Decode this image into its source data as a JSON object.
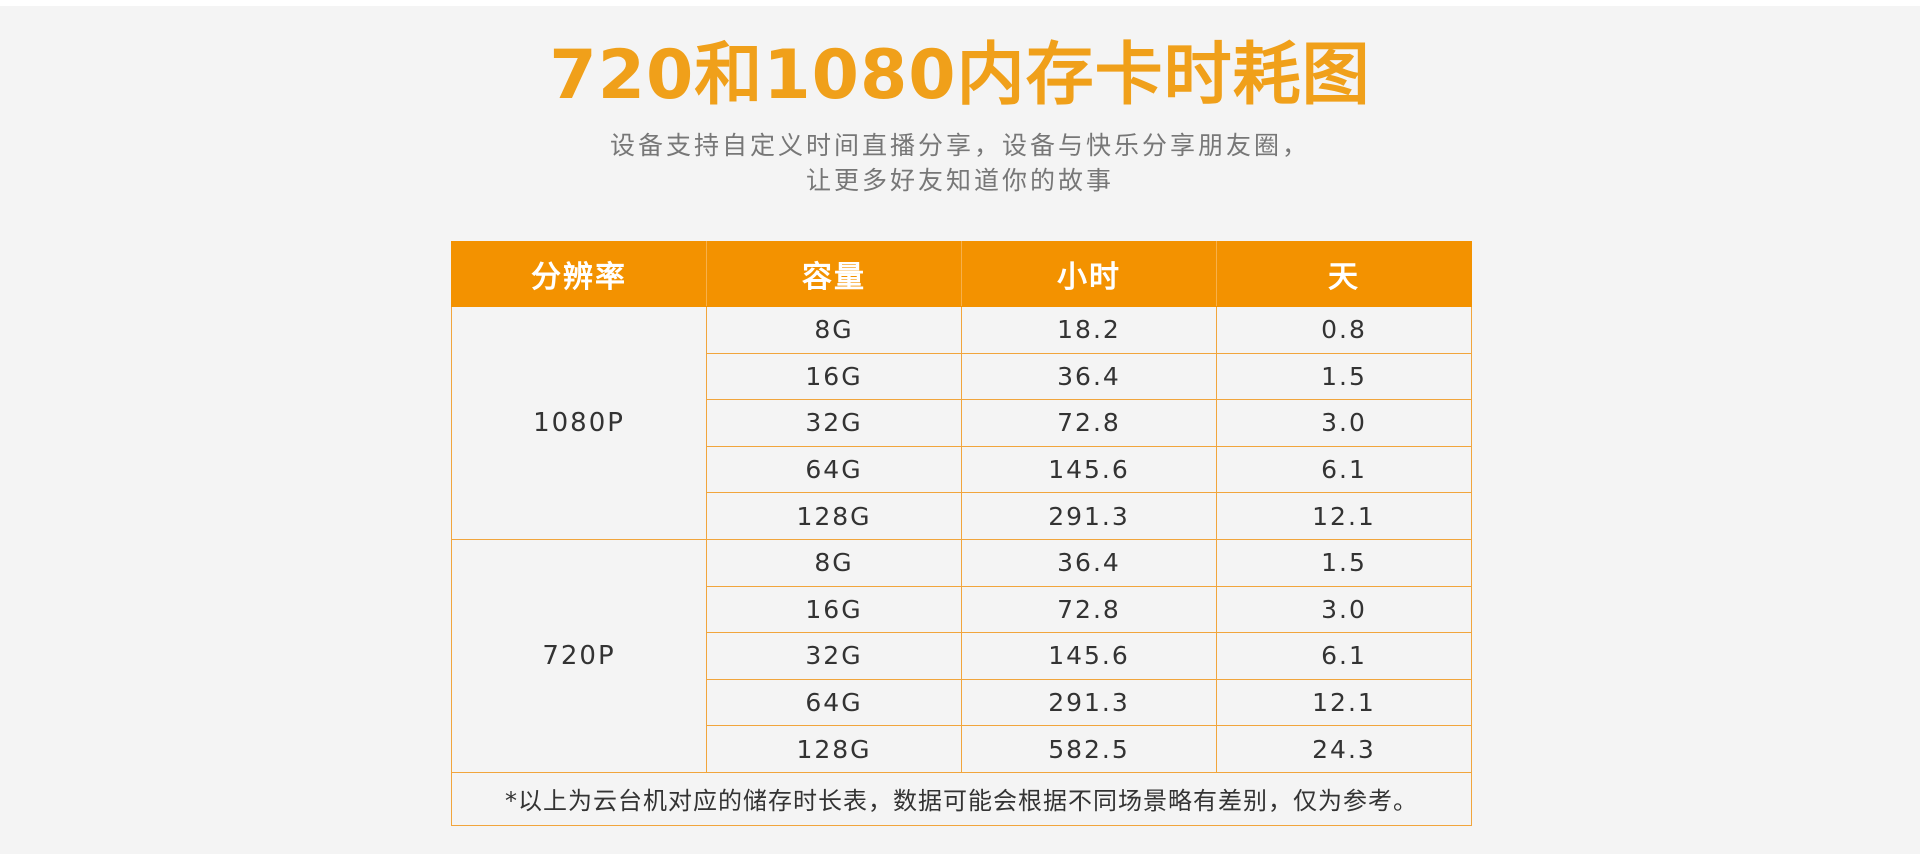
{
  "title": "720和1080内存卡时耗图",
  "subtitle": {
    "line1": "设备支持自定义时间直播分享，设备与快乐分享朋友圈，",
    "line2": "让更多好友知道你的故事"
  },
  "table": {
    "headers": [
      "分辨率",
      "容量",
      "小时",
      "天"
    ],
    "groups": [
      {
        "resolution": "1080P",
        "rows": [
          {
            "capacity": "8G",
            "hours": "18.2",
            "days": "0.8"
          },
          {
            "capacity": "16G",
            "hours": "36.4",
            "days": "1.5"
          },
          {
            "capacity": "32G",
            "hours": "72.8",
            "days": "3.0"
          },
          {
            "capacity": "64G",
            "hours": "145.6",
            "days": "6.1"
          },
          {
            "capacity": "128G",
            "hours": "291.3",
            "days": "12.1"
          }
        ]
      },
      {
        "resolution": "720P",
        "rows": [
          {
            "capacity": "8G",
            "hours": "36.4",
            "days": "1.5"
          },
          {
            "capacity": "16G",
            "hours": "72.8",
            "days": "3.0"
          },
          {
            "capacity": "32G",
            "hours": "145.6",
            "days": "6.1"
          },
          {
            "capacity": "64G",
            "hours": "291.3",
            "days": "12.1"
          },
          {
            "capacity": "128G",
            "hours": "582.5",
            "days": "24.3"
          }
        ]
      }
    ],
    "note": "*以上为云台机对应的储存时长表，数据可能会根据不同场景略有差别，仅为参考。"
  },
  "colors": {
    "title": "#f0a01a",
    "header_bg": "#f39200",
    "border": "#f1a53c",
    "background": "#f4f4f4"
  }
}
